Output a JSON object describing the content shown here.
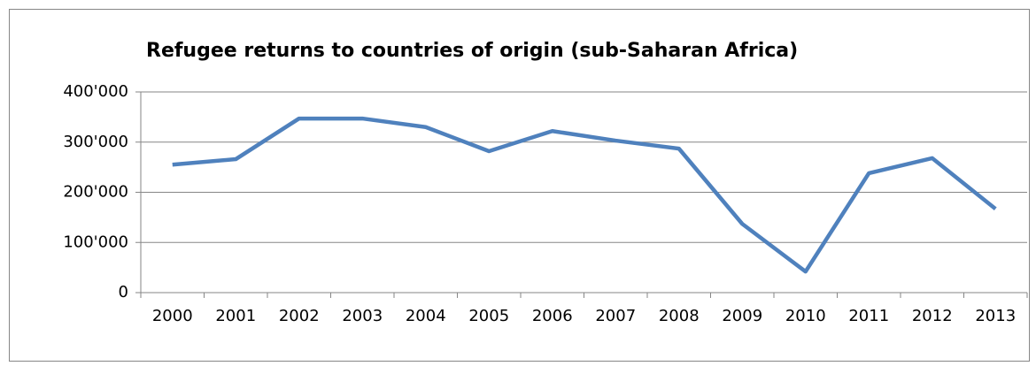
{
  "chart_data": {
    "type": "line",
    "title": "Refugee returns to countries of origin (sub-Saharan Africa)",
    "categories": [
      "2000",
      "2001",
      "2002",
      "2003",
      "2004",
      "2005",
      "2006",
      "2007",
      "2008",
      "2009",
      "2010",
      "2011",
      "2012",
      "2013"
    ],
    "values": [
      255000,
      266000,
      347000,
      347000,
      330000,
      282000,
      322000,
      303000,
      287000,
      137000,
      42000,
      238000,
      268000,
      167000
    ],
    "color": "#4f81bd",
    "ylim": [
      0,
      400000
    ],
    "yticks": [
      0,
      {
        "value": 100000,
        "label": "100'000"
      },
      {
        "value": 200000,
        "label": "200'000"
      },
      {
        "value": 300000,
        "label": "300'000"
      },
      {
        "value": 400000,
        "label": "400'000"
      }
    ],
    "grid": true
  }
}
